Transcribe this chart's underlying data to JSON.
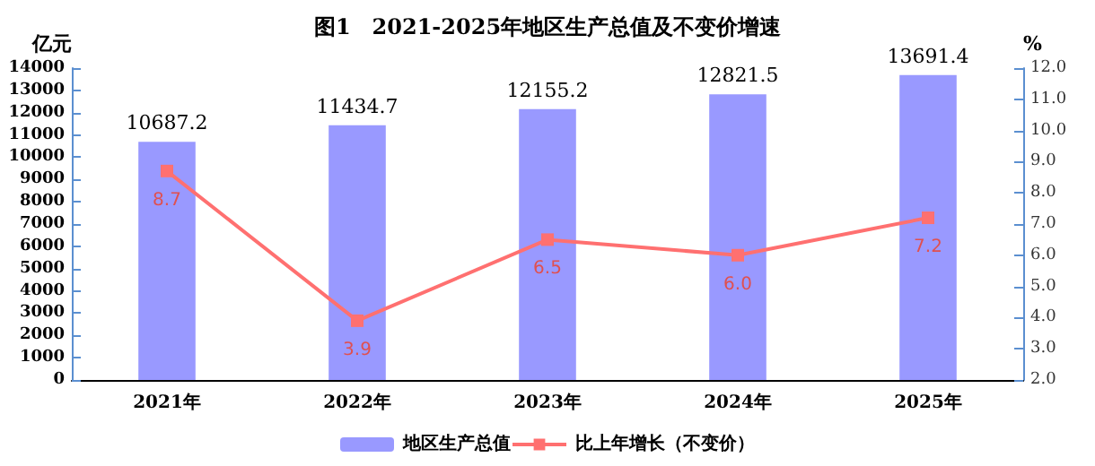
{
  "chart_data": {
    "type": "bar",
    "title": "图1　2021-2025年地区生产总值及不变价增速",
    "categories": [
      "2021年",
      "2022年",
      "2023年",
      "2024年",
      "2025年"
    ],
    "series": [
      {
        "name": "地区生产总值",
        "color": "#9999ff",
        "values": [
          10687.2,
          11434.7,
          12155.2,
          12821.5,
          13691.4
        ]
      },
      {
        "name": "比上年增长（不变价）",
        "type": "line",
        "axis": "y2",
        "color": "#ff7070",
        "values": [
          8.7,
          3.9,
          6.5,
          6.0,
          7.2
        ],
        "value_labels": [
          "8.7",
          "3.9",
          "6.5",
          "6.0",
          "7.2"
        ]
      }
    ],
    "ylabel": "亿元",
    "y2label": "%",
    "ylim": [
      0,
      14000
    ],
    "yticks": [
      0,
      1000,
      2000,
      3000,
      4000,
      5000,
      6000,
      7000,
      8000,
      9000,
      10000,
      11000,
      12000,
      13000,
      14000
    ],
    "y2lim": [
      2,
      12
    ],
    "y2ticks": [
      {
        "value": 2,
        "label": "2.0"
      },
      {
        "value": 3,
        "label": "3.0"
      },
      {
        "value": 4,
        "label": "4.0"
      },
      {
        "value": 5,
        "label": "5.0"
      },
      {
        "value": 6,
        "label": "6.0"
      },
      {
        "value": 7,
        "label": "7.0"
      },
      {
        "value": 8,
        "label": "8.0"
      },
      {
        "value": 9,
        "label": "9.0"
      },
      {
        "value": 10,
        "label": "10.0"
      },
      {
        "value": 11,
        "label": "11.0"
      },
      {
        "value": 12,
        "label": "12.0"
      }
    ],
    "data_labels": true,
    "legend": "bottom",
    "grid": false,
    "marker": "square",
    "line_style": "solid"
  }
}
